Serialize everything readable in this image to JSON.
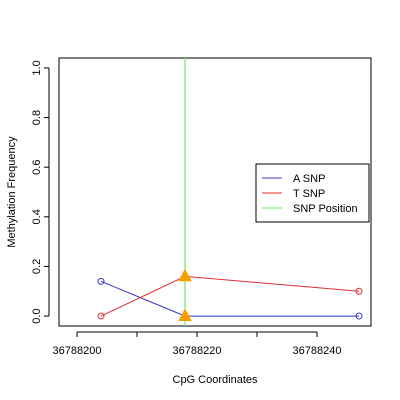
{
  "chart_data": {
    "type": "line",
    "title": "",
    "xlabel": "CpG Coordinates",
    "ylabel": "Methylation Frequency",
    "xlim": [
      36788197,
      36788249
    ],
    "ylim": [
      -0.04,
      1.04
    ],
    "xticks": [
      36788200,
      36788220,
      36788240
    ],
    "xticks_minor": [
      36788210,
      36788230
    ],
    "yticks": [
      0.0,
      0.2,
      0.4,
      0.6,
      0.8,
      1.0
    ],
    "ytick_labels": [
      "0.0",
      "0.2",
      "0.4",
      "0.6",
      "0.8",
      "1.0"
    ],
    "grid": false,
    "legend_position": "right",
    "series": [
      {
        "name": "A SNP",
        "color": "#3333cc",
        "points": [
          {
            "x": 36788204,
            "y": 0.14
          },
          {
            "x": 36788218,
            "y": 0.0
          },
          {
            "x": 36788247,
            "y": 0.0
          }
        ]
      },
      {
        "name": "T SNP",
        "color": "#e03030",
        "points": [
          {
            "x": 36788204,
            "y": 0.0
          },
          {
            "x": 36788218,
            "y": 0.16
          },
          {
            "x": 36788247,
            "y": 0.1
          }
        ]
      }
    ],
    "snp": {
      "name": "SNP Position",
      "color": "#66ee66",
      "x": 36788218,
      "marker_color": "#f5a000",
      "marker_values": [
        0.16,
        0.0
      ]
    }
  }
}
